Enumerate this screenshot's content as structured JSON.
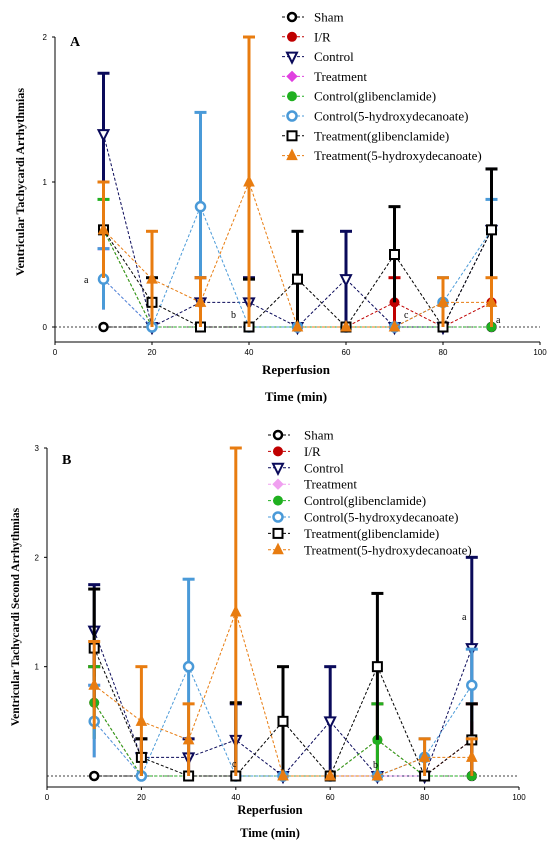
{
  "chart_data": [
    {
      "panel_label": "A",
      "type": "line",
      "ylabel": "Ventricular Tachycardi Arrhythmias",
      "xlabel": "Reperfusion",
      "xlabel2": "Time (min)",
      "xlim": [
        0,
        100
      ],
      "ylim": [
        0,
        2
      ],
      "x_ticks": [
        "0",
        "20",
        "40",
        "60",
        "80",
        "100"
      ],
      "y_ticks": [
        "0",
        "1",
        "2"
      ],
      "x": [
        10,
        20,
        30,
        40,
        50,
        60,
        70,
        80,
        90
      ],
      "legend_position": "top-right",
      "series": [
        {
          "name": "Sham",
          "color": "#000000",
          "marker": "circle-open-thick",
          "values": [
            0,
            0,
            0,
            0,
            0,
            0,
            0,
            0,
            0
          ],
          "errors": [
            0,
            0,
            0,
            0,
            0,
            0,
            0,
            0,
            0
          ]
        },
        {
          "name": "I/R",
          "color": "#c00000",
          "marker": "circle-filled",
          "values": [
            0.67,
            0,
            0,
            0,
            0,
            0,
            0.17,
            0,
            0.17
          ],
          "errors": [
            0.33,
            0,
            0,
            0,
            0,
            0,
            0.17,
            0,
            0
          ]
        },
        {
          "name": "Control",
          "color": "#0a0a5a",
          "marker": "triangle-down-open",
          "values": [
            1.33,
            0,
            0.17,
            0.17,
            0,
            0.33,
            0,
            0,
            0.67
          ],
          "errors": [
            0.42,
            0,
            0.17,
            0.17,
            0,
            0.33,
            0,
            0,
            0.42
          ]
        },
        {
          "name": "Treatment",
          "color": "#e040e0",
          "marker": "diamond-filled",
          "values": [
            0.33,
            0,
            0,
            0,
            0,
            0,
            0,
            0,
            0
          ],
          "errors": [
            0.21,
            0,
            0,
            0,
            0,
            0,
            0,
            0,
            0
          ]
        },
        {
          "name": "Control(glibenclamide)",
          "color": "#20b020",
          "marker": "circle-filled",
          "values": [
            0.67,
            0,
            0,
            0,
            0,
            0,
            0,
            0,
            0
          ],
          "errors": [
            0.21,
            0,
            0,
            0,
            0,
            0,
            0,
            0,
            0
          ]
        },
        {
          "name": "Control(5-hydroxydecanoate)",
          "color": "#4a9ad8",
          "marker": "circle-open",
          "values": [
            0.33,
            0,
            0.83,
            0,
            0,
            0,
            0,
            0.17,
            0.67
          ],
          "errors": [
            0.21,
            0,
            0.65,
            0,
            0,
            0,
            0,
            0.17,
            0.21
          ]
        },
        {
          "name": "Treatment(glibenclamide)",
          "color": "#000000",
          "marker": "square-open",
          "values": [
            0.67,
            0.17,
            0,
            0,
            0.33,
            0,
            0.5,
            0,
            0.67
          ],
          "errors": [
            0.33,
            0.17,
            0,
            0.33,
            0.33,
            0,
            0.33,
            0,
            0.42
          ]
        },
        {
          "name": "Treatment(5-hydroxydecanoate)",
          "color": "#e87c10",
          "marker": "triangle-up-filled",
          "values": [
            0.67,
            0.33,
            0.17,
            1,
            0,
            0,
            0,
            0.17,
            0.17
          ],
          "errors": [
            0.33,
            0.33,
            0.17,
            1,
            0,
            0,
            0,
            0.17,
            0.17
          ]
        }
      ],
      "annotations": [
        "a",
        "b",
        "c",
        "a"
      ]
    },
    {
      "panel_label": "B",
      "type": "line",
      "ylabel": "Ventricular Tachycardi Second Arrhythmias",
      "xlabel": "Reperfusion",
      "xlabel2": "Time (min)",
      "xlim": [
        0,
        100
      ],
      "ylim": [
        0,
        3
      ],
      "x_ticks": [
        "0",
        "20",
        "40",
        "60",
        "80",
        "100"
      ],
      "y_ticks": [
        "1",
        "2",
        "3"
      ],
      "x": [
        10,
        20,
        30,
        40,
        50,
        60,
        70,
        80,
        90
      ],
      "legend_position": "top-right",
      "series": [
        {
          "name": "Sham",
          "color": "#000000",
          "marker": "circle-open-thick",
          "values": [
            0,
            0,
            0,
            0,
            0,
            0,
            0,
            0,
            0
          ],
          "errors": [
            0,
            0,
            0,
            0,
            0,
            0,
            0,
            0,
            0
          ]
        },
        {
          "name": "I/R",
          "color": "#c00000",
          "marker": "circle-filled",
          "values": [
            0.67,
            0,
            0,
            0,
            0,
            0,
            0.33,
            0,
            0.33
          ],
          "errors": [
            0.33,
            0,
            0,
            0,
            0,
            0,
            0.33,
            0,
            0.33
          ]
        },
        {
          "name": "Control",
          "color": "#0a0a5a",
          "marker": "triangle-down-open",
          "values": [
            1.33,
            0.17,
            0.17,
            0.33,
            0,
            0.5,
            0,
            0,
            1.17
          ],
          "errors": [
            0.42,
            0.17,
            0.17,
            0.33,
            0,
            0.5,
            0,
            0,
            0.83
          ]
        },
        {
          "name": "Treatment",
          "color": "#f0a0f0",
          "marker": "diamond-filled",
          "values": [
            0.5,
            0,
            0,
            0,
            0,
            0,
            0,
            0,
            0
          ],
          "errors": [
            0.33,
            0,
            0,
            0,
            0,
            0,
            0,
            0,
            0
          ]
        },
        {
          "name": "Control(glibenclamide)",
          "color": "#20b020",
          "marker": "circle-filled",
          "values": [
            0.67,
            0,
            0,
            0,
            0,
            0,
            0.33,
            0,
            0
          ],
          "errors": [
            0.33,
            0,
            0,
            0,
            0,
            0,
            0.33,
            0,
            0
          ]
        },
        {
          "name": "Control(5-hydroxydecanoate)",
          "color": "#4a9ad8",
          "marker": "circle-open",
          "values": [
            0.5,
            0,
            1,
            0,
            0,
            0,
            0,
            0.17,
            0.83
          ],
          "errors": [
            0.33,
            0,
            0.8,
            0,
            0,
            0,
            0,
            0.17,
            0.33
          ]
        },
        {
          "name": "Treatment(glibenclamide)",
          "color": "#000000",
          "marker": "square-open",
          "values": [
            1.17,
            0.17,
            0,
            0,
            0.5,
            0,
            1,
            0,
            0.33
          ],
          "errors": [
            0.54,
            0.17,
            0,
            0.67,
            0.5,
            0,
            0.67,
            0,
            0.33
          ]
        },
        {
          "name": "Treatment(5-hydroxydecanoate)",
          "color": "#e87c10",
          "marker": "triangle-up-filled",
          "values": [
            0.83,
            0.5,
            0.33,
            1.5,
            0,
            0,
            0,
            0.17,
            0.17
          ],
          "errors": [
            0.4,
            0.5,
            0.33,
            1.5,
            0,
            0,
            0,
            0.17,
            0.17
          ]
        }
      ],
      "annotations": [
        "a",
        "c",
        "b"
      ]
    }
  ]
}
